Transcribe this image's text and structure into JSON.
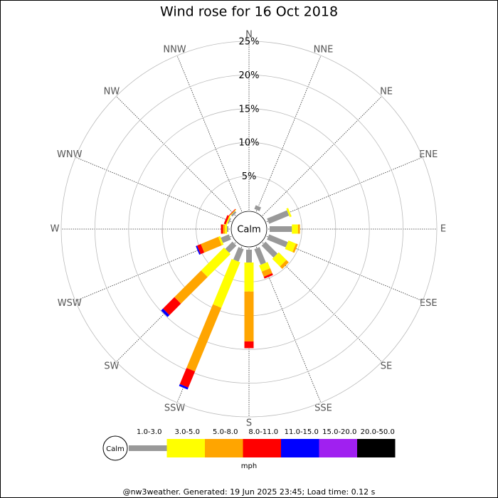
{
  "chart_data": {
    "type": "windrose",
    "title": "Wind rose for 16 Oct 2018",
    "directions": [
      "N",
      "NNE",
      "NE",
      "ENE",
      "E",
      "ESE",
      "SE",
      "SSE",
      "S",
      "SSW",
      "SW",
      "WSW",
      "W",
      "WNW",
      "NW",
      "NNW"
    ],
    "rlim": [
      0,
      25
    ],
    "rticks": [
      {
        "value": 5,
        "label": "5%"
      },
      {
        "value": 10,
        "label": "10%"
      },
      {
        "value": 15,
        "label": "15%"
      },
      {
        "value": 20,
        "label": "20%"
      },
      {
        "value": 25,
        "label": "25%"
      }
    ],
    "calm_label": "Calm",
    "unit": "mph",
    "series": [
      {
        "name": "1.0-3.0",
        "color": "#999999",
        "values": [
          0,
          0.6,
          0,
          3.2,
          3.3,
          3.0,
          2.5,
          2.5,
          1.9,
          2.0,
          1.5,
          1.3,
          0.2,
          0.2,
          0.3,
          0
        ]
      },
      {
        "name": "3.0-5.0",
        "color": "#ffff00",
        "values": [
          0,
          0,
          0,
          0.3,
          0.9,
          1.2,
          1.6,
          1.0,
          4.3,
          7.3,
          4.8,
          0.3,
          0.3,
          0.2,
          0.1,
          0
        ]
      },
      {
        "name": "5.0-8.0",
        "color": "#ffa500",
        "values": [
          0,
          0,
          0,
          0,
          0.3,
          0.3,
          0.5,
          0.8,
          7.4,
          10.2,
          5.6,
          2.8,
          0.3,
          0,
          0,
          0
        ]
      },
      {
        "name": "8.0-11.0",
        "color": "#ff0000",
        "values": [
          0,
          0,
          0,
          0,
          0,
          0,
          0,
          0.3,
          1.0,
          2.6,
          2.4,
          0.6,
          0.3,
          0.3,
          0.1,
          0
        ]
      },
      {
        "name": "11.0-15.0",
        "color": "#0000ff",
        "values": [
          0,
          0,
          0,
          0,
          0,
          0,
          0,
          0,
          0,
          0.3,
          0.4,
          0.2,
          0,
          0,
          0,
          0
        ]
      },
      {
        "name": "15.0-20.0",
        "color": "#a020f0",
        "values": [
          0,
          0,
          0,
          0,
          0,
          0,
          0,
          0,
          0,
          0,
          0,
          0,
          0,
          0,
          0,
          0
        ]
      },
      {
        "name": "20.0-50.0",
        "color": "#000000",
        "values": [
          0,
          0,
          0,
          0,
          0,
          0,
          0,
          0,
          0,
          0,
          0,
          0,
          0,
          0,
          0,
          0
        ]
      }
    ],
    "footer": "@nw3weather. Generated: 19 Jun 2025 23:45; Load time: 0.12 s"
  }
}
